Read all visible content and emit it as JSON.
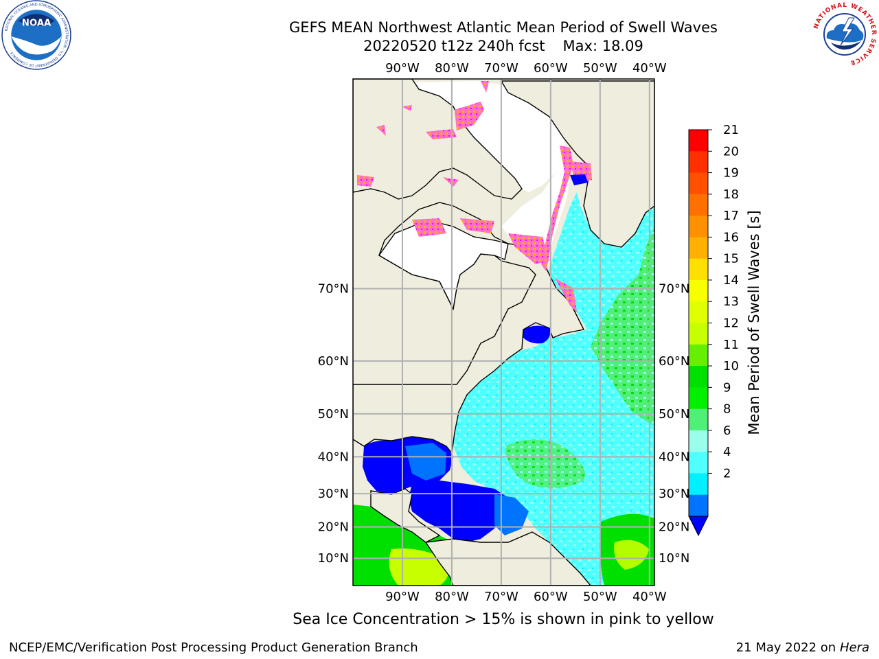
{
  "title": {
    "line1": "GEFS MEAN Northwest Atlantic Mean Period of Swell Waves",
    "run": "20220520 t12z 240h fcst",
    "max": "Max: 18.09"
  },
  "logos": {
    "left": "noaa-logo",
    "right": "national-weather-service-logo",
    "left_ring_text": "NATIONAL OCEANIC AND ATMOSPHERIC ADMINISTRATION · U.S. DEPARTMENT OF COMMERCE",
    "left_center_text": "NOAA",
    "right_ring_text": "NATIONAL WEATHER SERVICE"
  },
  "map": {
    "lon_labels": [
      "90°W",
      "80°W",
      "70°W",
      "60°W",
      "50°W",
      "40°W"
    ],
    "lon_values": [
      -90,
      -80,
      -70,
      -60,
      -50,
      -40
    ],
    "lat_labels": [
      "70°N",
      "60°N",
      "50°N",
      "40°N",
      "30°N",
      "20°N",
      "10°N"
    ],
    "lat_values": [
      70,
      60,
      50,
      40,
      30,
      20,
      10
    ],
    "extent": {
      "lon_min": -100,
      "lon_max": -39,
      "lat_min": 1,
      "lat_max": 84
    },
    "gridlines": true,
    "land_color": "#efedde",
    "coastline_color": "#000000"
  },
  "colorbar": {
    "label": "Mean Period of Swell Waves [s]",
    "ticks": [
      "21",
      "20",
      "19",
      "18",
      "17",
      "16",
      "15",
      "14",
      "13",
      "12",
      "11",
      "10",
      "9",
      "8",
      "6",
      "4",
      "2"
    ],
    "tick_values": [
      21,
      20,
      19,
      18,
      17,
      16,
      15,
      14,
      13,
      12,
      11,
      10,
      9,
      8,
      6,
      4,
      2
    ],
    "colors": [
      "#ff0000",
      "#ff3000",
      "#ff5000",
      "#ff7000",
      "#ff9000",
      "#ffb000",
      "#ffe000",
      "#f8ff00",
      "#e0ff00",
      "#c8ff00",
      "#64f000",
      "#00e000",
      "#00f000",
      "#50ef78",
      "#99ffec",
      "#50ffff",
      "#00f0ff",
      "#0074ff"
    ],
    "under_color": "#0000ff",
    "extend": "min"
  },
  "note": "Sea Ice Concentration > 15% is shown in pink to yellow",
  "footer": {
    "left": "NCEP/EMC/Verification Post Processing Product Generation Branch",
    "date": "21 May 2022 on",
    "host": "Hera"
  }
}
